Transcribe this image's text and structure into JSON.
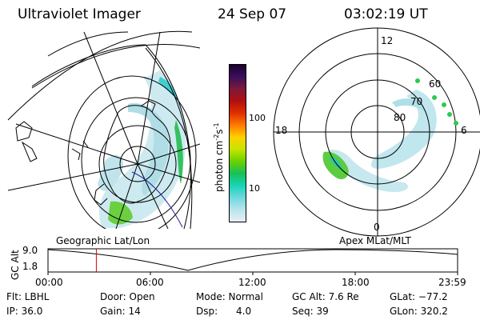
{
  "header": {
    "instrument": "Ultraviolet Imager",
    "date": "24 Sep 07",
    "time": "03:02:19 UT"
  },
  "left_map": {
    "caption": "Geographic Lat/Lon"
  },
  "right_map": {
    "caption": "Apex MLat/MLT",
    "mlt_labels": [
      "12",
      "18",
      "6",
      "0"
    ],
    "mlat_labels": [
      "60",
      "70",
      "80"
    ]
  },
  "colorbar": {
    "unit_label": "photon cm",
    "unit_sup1": "-2",
    "unit_mid": "s",
    "unit_sup2": "-1",
    "ticks": [
      "100",
      "10"
    ],
    "colors": [
      "#1a0030",
      "#3b0f5c",
      "#7a1a3a",
      "#b01010",
      "#e03000",
      "#ff7a00",
      "#ffd000",
      "#c8e400",
      "#6ad200",
      "#18c05a",
      "#18d4b4",
      "#6cd8e0",
      "#b8e4ec",
      "#e8f0f2"
    ]
  },
  "altitude_panel": {
    "axis_label": "GC Alt",
    "y_ticks": [
      "9.0",
      "1.8"
    ],
    "x_ticks": [
      "00:00",
      "06:00",
      "12:00",
      "18:00",
      "23:59"
    ],
    "current_time_fraction": 0.118
  },
  "info": {
    "flt": "Flt: LBHL",
    "ip": "IP: 36.0",
    "door": "Door: Open",
    "gain": "Gain: 14",
    "mode": "Mode: Normal",
    "dsp": "Dsp:",
    "dsp_value": "4.0",
    "gc_alt": "GC Alt: 7.6 Re",
    "seq": "Seq: 39",
    "glat": "GLat: −77.2",
    "glon": "GLon: 320.2"
  },
  "colors": {
    "aurora_light": "#b8e4ec",
    "aurora_cyan": "#3ecfd0",
    "aurora_green": "#60d040",
    "marker_red": "#e00000"
  }
}
